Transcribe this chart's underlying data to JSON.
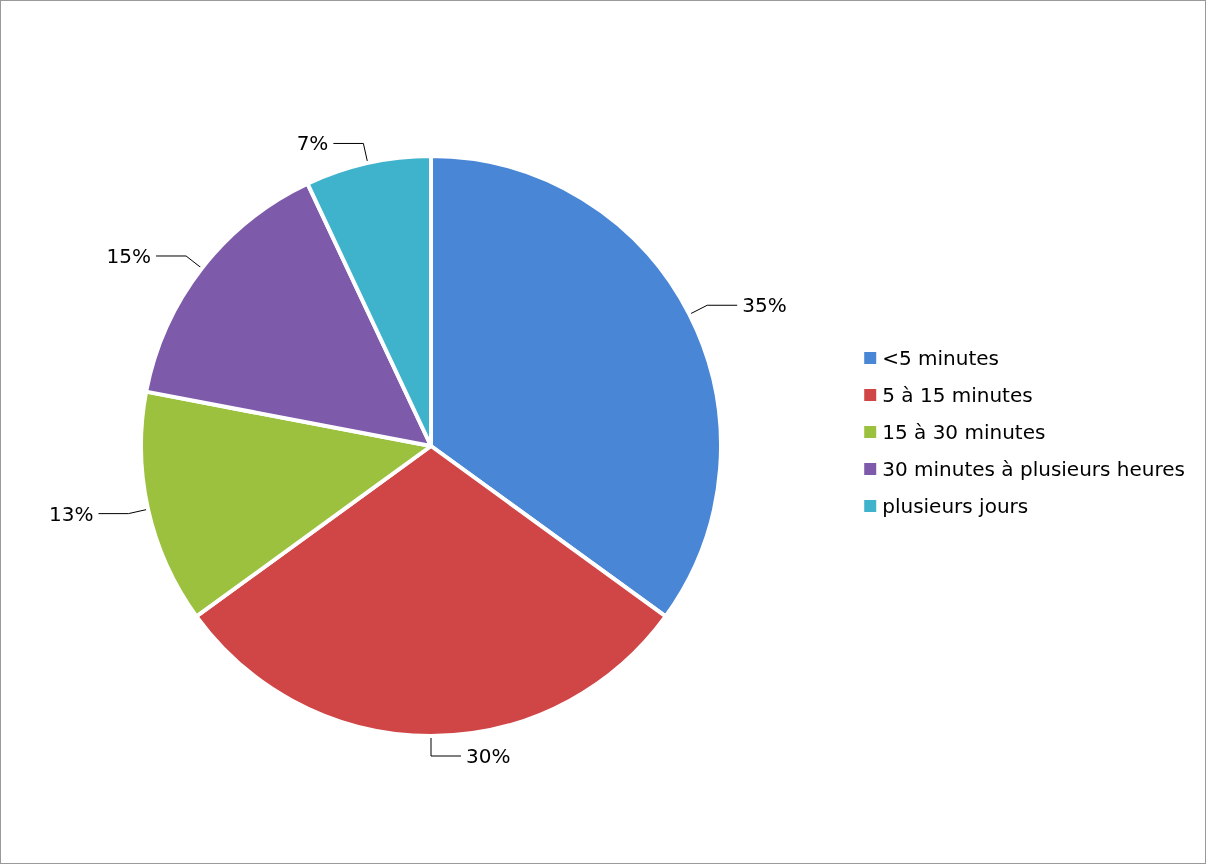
{
  "chart_data": {
    "type": "pie",
    "categories": [
      "<5 minutes",
      "5 à 15 minutes",
      "15 à 30 minutes",
      "30 minutes à plusieurs heures",
      "plusieurs jours"
    ],
    "values": [
      35,
      30,
      13,
      15,
      7
    ],
    "colors": [
      "#4a86d6",
      "#d04545",
      "#9bc13f",
      "#7e5aab",
      "#3fb3cc"
    ],
    "value_labels": [
      "35%",
      "30%",
      "13%",
      "15%",
      "7%"
    ],
    "legend": "right"
  }
}
